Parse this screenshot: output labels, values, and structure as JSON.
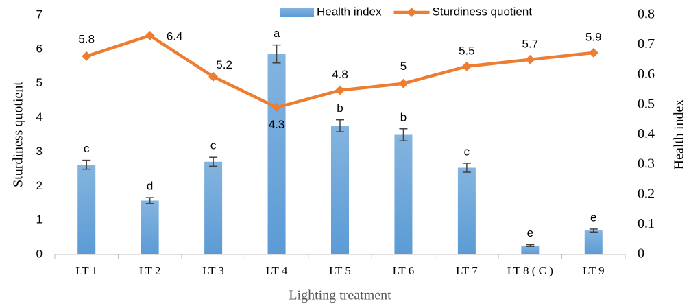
{
  "chart_data": {
    "type": "bar-line",
    "x_label": "Lighting treatment",
    "y_label": "Sturdiness quotient",
    "y2_label": "Health index",
    "categories": [
      "LT 1",
      "LT 2",
      "LT 3",
      "LT 4",
      "LT 5",
      "LT 6",
      "LT 7",
      "LT 8 ( C )",
      "LT 9"
    ],
    "ylim": [
      0,
      7
    ],
    "yticks": [
      0,
      1,
      2,
      3,
      4,
      5,
      6,
      7
    ],
    "y2lim": [
      0,
      0.8
    ],
    "y2ticks": [
      0,
      0.1,
      0.2,
      0.3,
      0.4,
      0.5,
      0.6,
      0.7,
      0.8
    ],
    "grid": false,
    "legend": "top",
    "series": [
      {
        "name": "Health index",
        "type": "bar",
        "axis": "y2",
        "color": "#5b9bd5",
        "values": [
          0.3,
          0.18,
          0.31,
          0.67,
          0.43,
          0.4,
          0.29,
          0.03,
          0.08
        ],
        "errors": [
          0.015,
          0.01,
          0.015,
          0.03,
          0.02,
          0.02,
          0.015,
          0.003,
          0.005
        ],
        "annotations": [
          "c",
          "d",
          "c",
          "a",
          "b",
          "b",
          "c",
          "e",
          "e"
        ]
      },
      {
        "name": "Sturdiness quotient",
        "type": "line",
        "axis": "y",
        "color": "#ed7d31",
        "values": [
          5.8,
          6.4,
          5.2,
          4.3,
          4.8,
          5,
          5.5,
          5.7,
          5.9
        ]
      }
    ]
  }
}
